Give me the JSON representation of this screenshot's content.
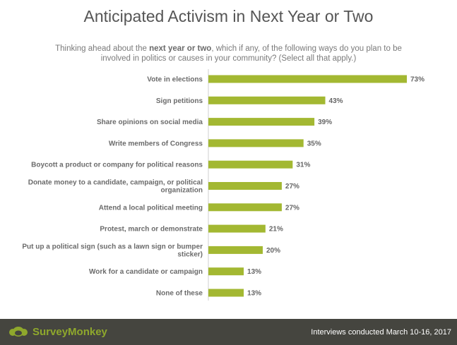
{
  "title": "Anticipated Activism in Next Year or Two",
  "subtitle": {
    "pre": "Thinking ahead about the ",
    "bold": "next year or two",
    "post": ", which if any, of the following ways do you plan to be involved in politics or causes in your community? (Select all that apply.)"
  },
  "colors": {
    "bar": "#a3b832",
    "footer": "#45453f",
    "brand": "#8fa82c"
  },
  "chart_data": {
    "type": "bar",
    "orientation": "horizontal",
    "categories": [
      [
        "Vote in elections"
      ],
      [
        "Sign petitions"
      ],
      [
        "Share opinions on social media"
      ],
      [
        "Write members of Congress"
      ],
      [
        "Boycott a product or company for political reasons"
      ],
      [
        "Donate money to a candidate, campaign, or political",
        "organization"
      ],
      [
        "Attend a local political meeting"
      ],
      [
        "Protest, march or demonstrate"
      ],
      [
        "Put up a political sign (such as a lawn sign or bumper",
        "sticker)"
      ],
      [
        "Work for a candidate or campaign"
      ],
      [
        "None of these"
      ]
    ],
    "values": [
      73,
      43,
      39,
      35,
      31,
      27,
      27,
      21,
      20,
      13,
      13
    ],
    "value_labels": [
      "73%",
      "43%",
      "39%",
      "35%",
      "31%",
      "27%",
      "27%",
      "21%",
      "20%",
      "13%",
      "13%"
    ],
    "xlim": [
      0,
      73
    ],
    "grid": false,
    "legend": "none"
  },
  "footer": {
    "brand": "SurveyMonkey",
    "note": "Interviews conducted March 10-16, 2017"
  }
}
